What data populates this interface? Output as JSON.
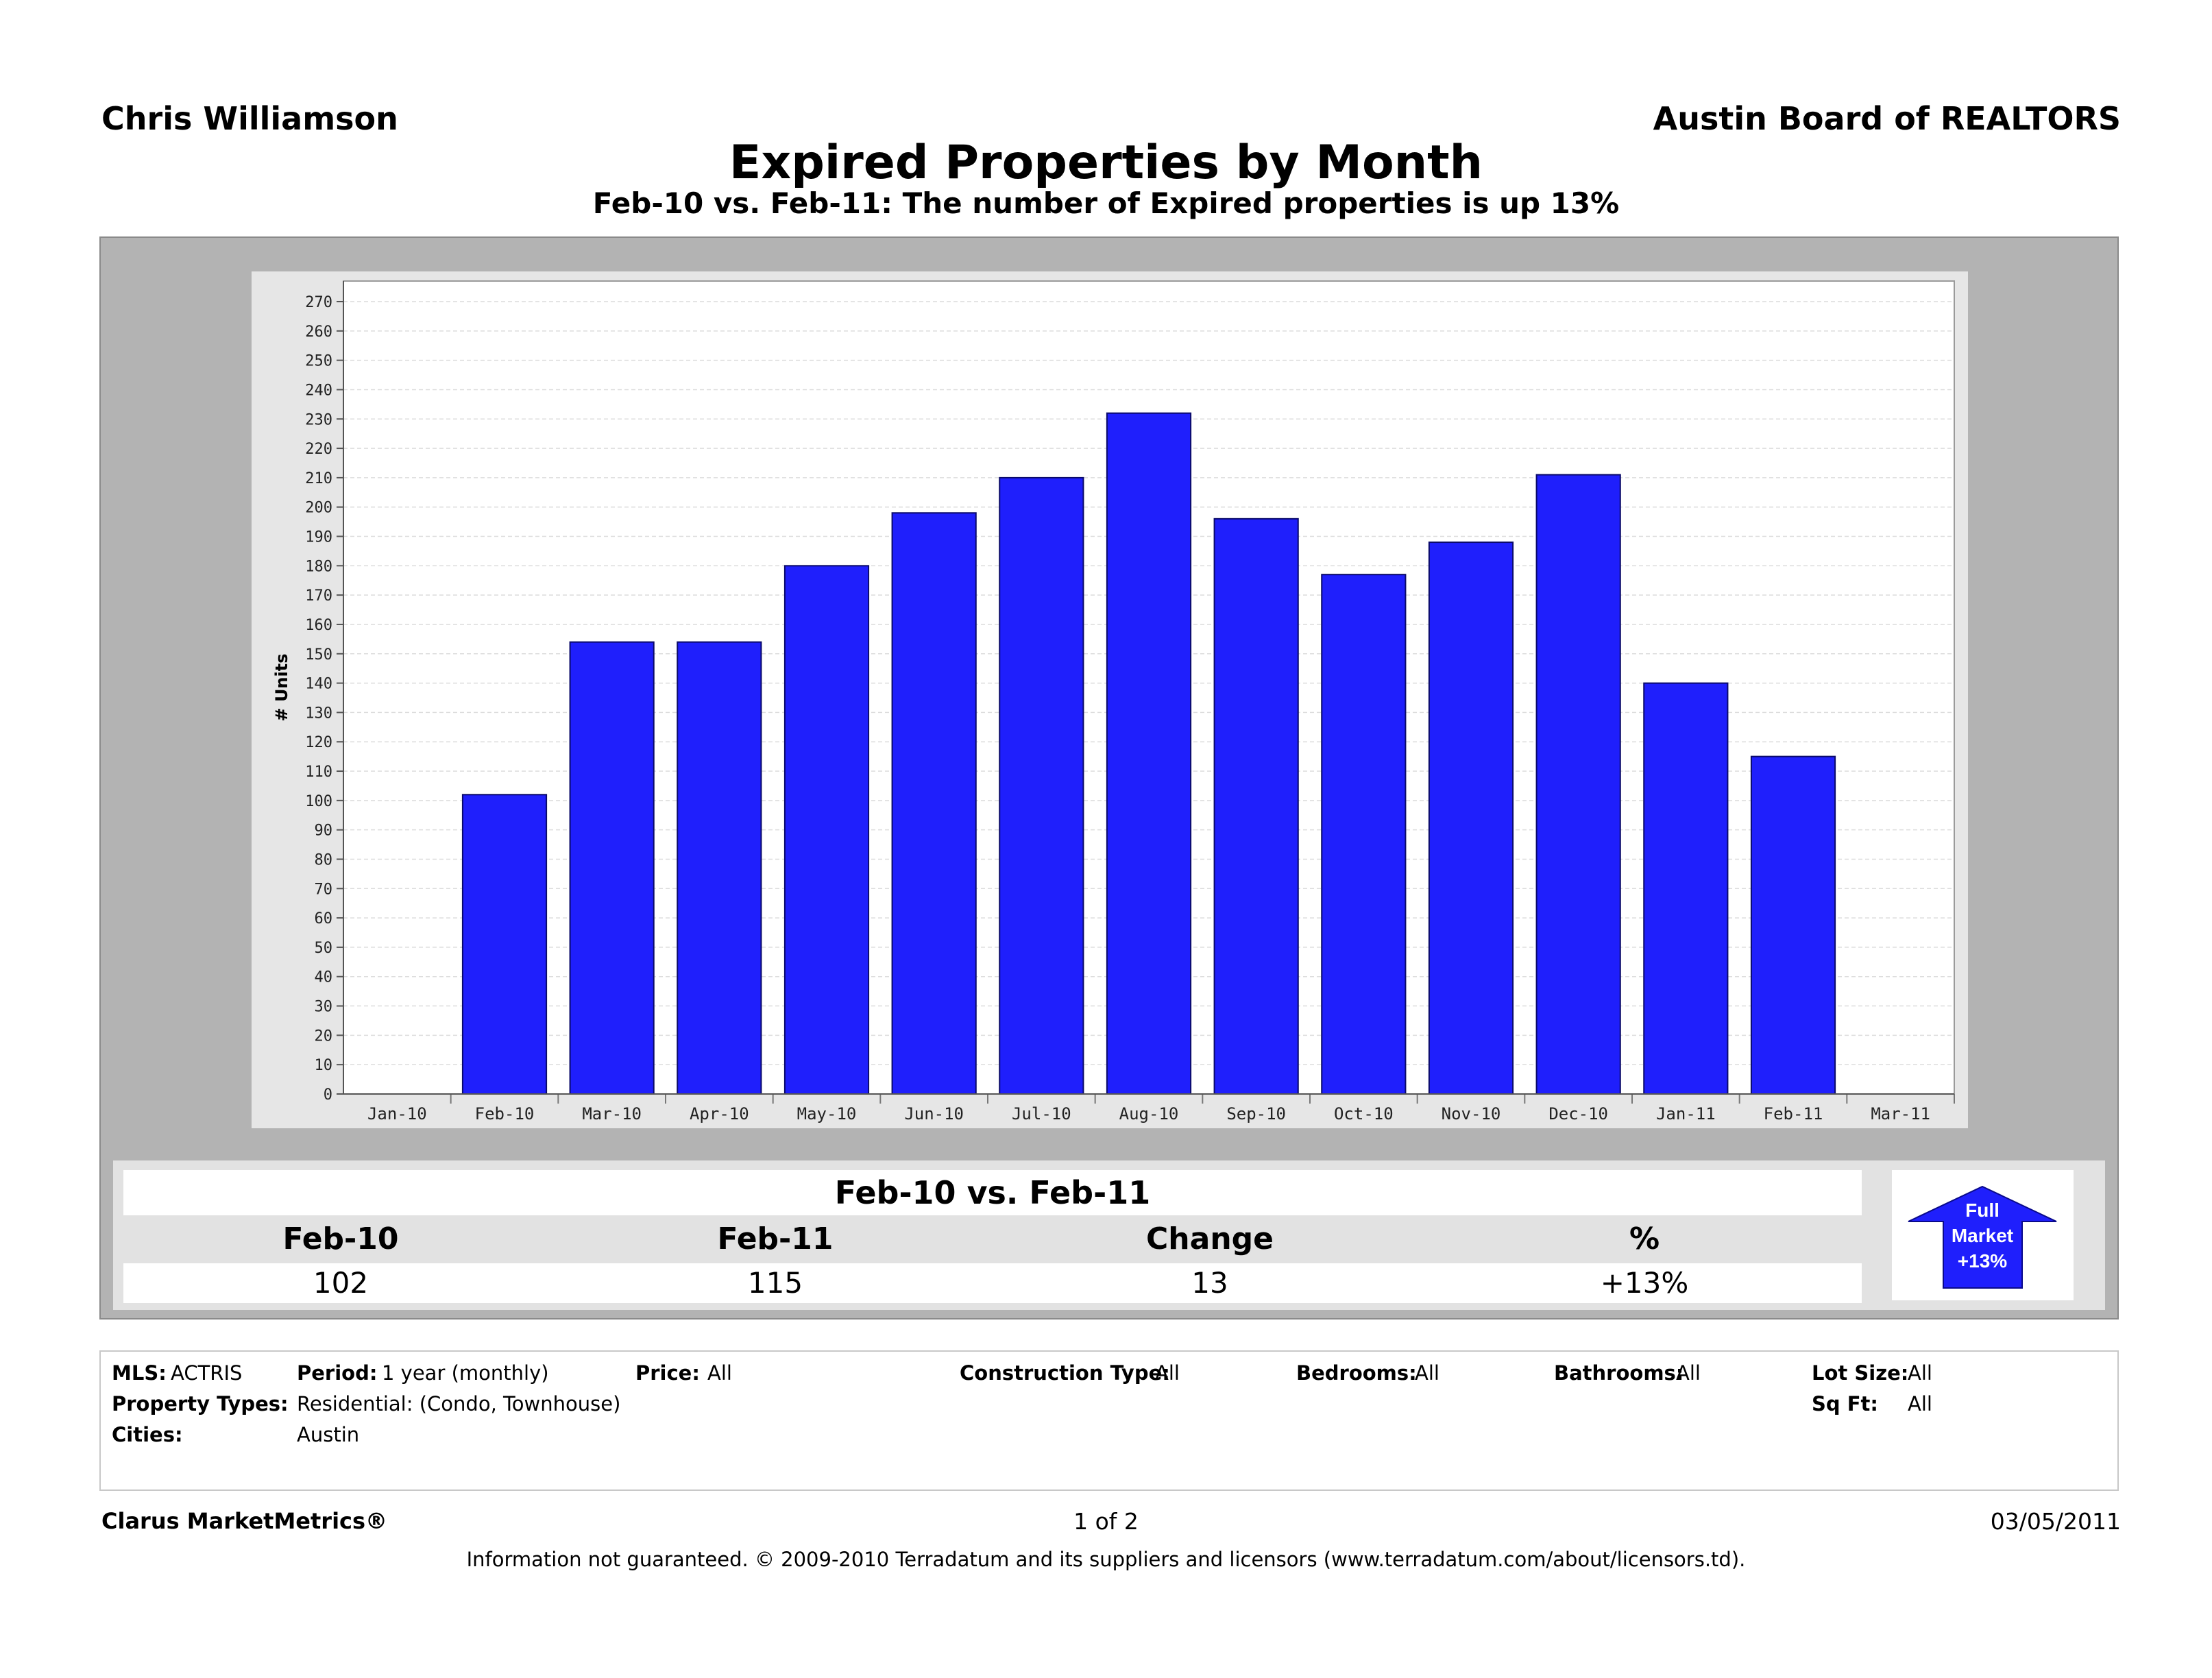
{
  "header": {
    "agent": "Chris Williamson",
    "board": "Austin Board of REALTORS",
    "title": "Expired Properties by Month",
    "subtitle": "Feb-10 vs. Feb-11: The number of Expired properties is up 13%"
  },
  "chart_data": {
    "type": "bar",
    "ylabel": "# Units",
    "ylim": [
      0,
      270
    ],
    "ytick_step": 10,
    "grid": true,
    "bar_color": "#1f1ffc",
    "categories": [
      "Jan-10",
      "Feb-10",
      "Mar-10",
      "Apr-10",
      "May-10",
      "Jun-10",
      "Jul-10",
      "Aug-10",
      "Sep-10",
      "Oct-10",
      "Nov-10",
      "Dec-10",
      "Jan-11",
      "Feb-11",
      "Mar-11"
    ],
    "values": [
      null,
      102,
      154,
      154,
      180,
      198,
      210,
      232,
      196,
      177,
      188,
      211,
      140,
      115,
      null
    ]
  },
  "comparison": {
    "title": "Feb-10 vs. Feb-11",
    "headers": [
      "Feb-10",
      "Feb-11",
      "Change",
      "%"
    ],
    "values": [
      "102",
      "115",
      "13",
      "+13%"
    ]
  },
  "badge": {
    "line1": "Full",
    "line2": "Market",
    "line3": "+13%",
    "color": "#1f1ffc"
  },
  "filters": {
    "mls_label": "MLS:",
    "mls_value": "ACTRIS",
    "period_label": "Period:",
    "period_value": "1 year (monthly)",
    "price_label": "Price:",
    "price_value": "All",
    "construction_label": "Construction Type:",
    "construction_value": "All",
    "bedrooms_label": "Bedrooms:",
    "bedrooms_value": "All",
    "bathrooms_label": "Bathrooms:",
    "bathrooms_value": "All",
    "lot_label": "Lot Size:",
    "lot_value": "All",
    "ptypes_label": "Property Types:",
    "ptypes_value": "Residential: (Condo, Townhouse)",
    "sqft_label": "Sq Ft:",
    "sqft_value": "All",
    "cities_label": "Cities:",
    "cities_value": "Austin"
  },
  "footer": {
    "brand": "Clarus MarketMetrics®",
    "page": "1 of 2",
    "date": "03/05/2011",
    "disclaimer": "Information not guaranteed.  © 2009-2010 Terradatum and its suppliers and licensors (www.terradatum.com/about/licensors.td)."
  }
}
